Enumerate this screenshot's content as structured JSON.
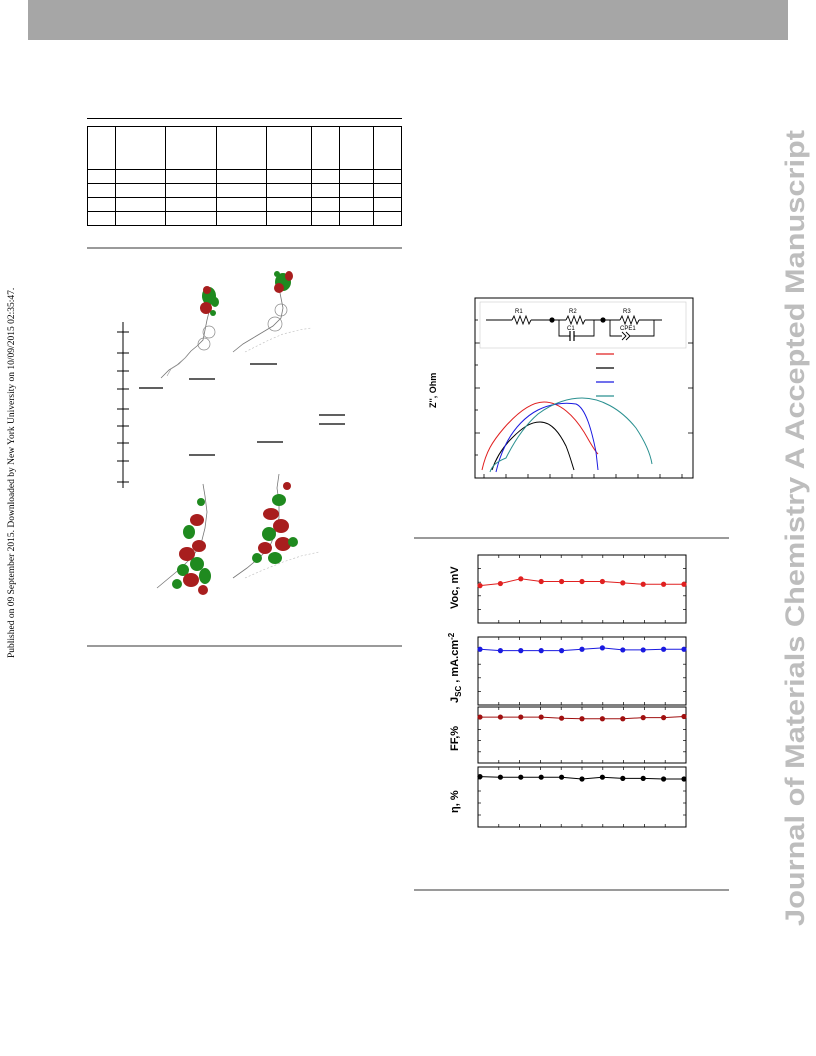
{
  "side_text": {
    "published_note": "Published on 09 September 2015. Downloaded by New York University on 10/09/2015 02:35:47.",
    "journal_watermark": "Journal of Materials Chemistry A Accepted Manuscript"
  },
  "colors": {
    "banner": "#a6a6a6",
    "watermark": "#bdbdbd",
    "series_red": "#e02020",
    "series_black": "#000000",
    "series_blue": "#1a1ae0",
    "series_teal": "#2a9090",
    "series_darkred": "#a01010"
  },
  "table": {
    "columns": 8,
    "data_rows": 4
  },
  "eis_circuit": {
    "labels": [
      "R1",
      "R2",
      "C1",
      "R3",
      "CPE1"
    ]
  },
  "eis_plot": {
    "ylabel": "Z'', Ohm"
  },
  "stability_plot": {
    "panels": [
      {
        "label": "Voc, mV",
        "color": "#e02020"
      },
      {
        "label": "Jsc , mA.cm-2",
        "color": "#1a1ae0"
      },
      {
        "label": "FF,%",
        "color": "#a01010"
      },
      {
        "label": "η, %",
        "color": "#000000"
      }
    ]
  },
  "chart_data": {
    "type": "scatter",
    "x": [
      0,
      1,
      2,
      3,
      4,
      5,
      6,
      7,
      8,
      9,
      10
    ],
    "series": [
      {
        "name": "Voc, mV",
        "values": [
          0.45,
          0.42,
          0.35,
          0.39,
          0.39,
          0.39,
          0.39,
          0.41,
          0.43,
          0.43,
          0.43
        ]
      },
      {
        "name": "Jsc , mA.cm-2",
        "values": [
          0.18,
          0.2,
          0.2,
          0.2,
          0.2,
          0.18,
          0.16,
          0.19,
          0.19,
          0.18,
          0.18
        ]
      },
      {
        "name": "FF,%",
        "values": [
          0.18,
          0.18,
          0.18,
          0.18,
          0.2,
          0.21,
          0.21,
          0.21,
          0.19,
          0.19,
          0.17
        ]
      },
      {
        "name": "η, %",
        "values": [
          0.16,
          0.17,
          0.17,
          0.17,
          0.17,
          0.2,
          0.17,
          0.19,
          0.19,
          0.2,
          0.2
        ]
      }
    ]
  }
}
